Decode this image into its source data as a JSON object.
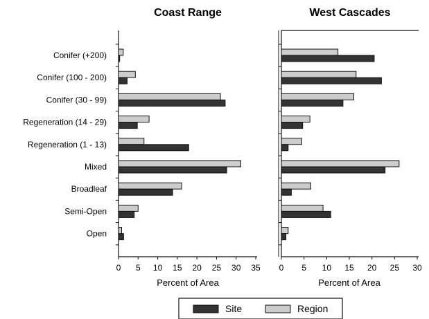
{
  "chart_data": [
    {
      "type": "bar",
      "orientation": "horizontal",
      "title": "Coast Range",
      "xlabel": "Percent of Area",
      "ylabel": "",
      "xlim": [
        0,
        35
      ],
      "xticks": [
        "0",
        "5",
        "10",
        "15",
        "20",
        "25",
        "30",
        "35"
      ],
      "categories": [
        "Conifer (+200)",
        "Conifer (100 - 200)",
        "Conifer (30 - 99)",
        "Regeneration (14 - 29)",
        "Regeneration (1 - 13)",
        "Mixed",
        "Broadleaf",
        "Semi-Open",
        "Open"
      ],
      "series": [
        {
          "name": "Region",
          "values": [
            1.2,
            4.3,
            26.0,
            7.8,
            6.5,
            31.2,
            16.1,
            5.0,
            0.8
          ]
        },
        {
          "name": "Site",
          "values": [
            0.3,
            2.2,
            27.2,
            4.8,
            17.9,
            27.6,
            13.8,
            4.0,
            1.3
          ]
        }
      ],
      "grid": false
    },
    {
      "type": "bar",
      "orientation": "horizontal",
      "title": "West Cascades",
      "xlabel": "Percent of Area",
      "ylabel": "",
      "xlim": [
        0,
        30
      ],
      "xticks": [
        "0",
        "5",
        "10",
        "15",
        "20",
        "25",
        "30"
      ],
      "categories": [
        "Conifer (+200)",
        "Conifer (100 - 200)",
        "Conifer (30 - 99)",
        "Regeneration (14 - 29)",
        "Regeneration (1 - 13)",
        "Mixed",
        "Broadleaf",
        "Semi-Open",
        "Open"
      ],
      "series": [
        {
          "name": "Region",
          "values": [
            12.5,
            16.5,
            16.0,
            6.3,
            4.5,
            26.0,
            6.5,
            9.2,
            1.5
          ]
        },
        {
          "name": "Site",
          "values": [
            20.5,
            22.1,
            13.6,
            4.7,
            1.5,
            22.9,
            2.2,
            10.9,
            1.0
          ]
        }
      ],
      "grid": false
    }
  ],
  "legend": {
    "placement": "bottom",
    "items": [
      {
        "label": "Site",
        "color": "#333333"
      },
      {
        "label": "Region",
        "color": "#cccccc"
      }
    ]
  },
  "colors": {
    "site": "#333333",
    "region": "#cccccc",
    "outline": "#111111"
  }
}
